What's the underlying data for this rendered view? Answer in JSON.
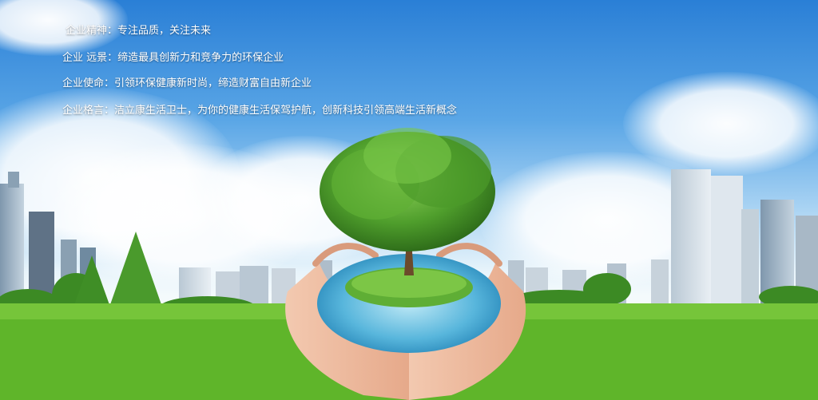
{
  "mission": {
    "spirit": "企业精神：专注品质，关注未来",
    "vision": "企业 远景：缔造最具创新力和竞争力的环保企业",
    "mission": "企业使命：引领环保健康新时尚，缔造财富自由新企业",
    "motto": "企业格言：洁立康生活卫士，为你的健康生活保驾护航，创新科技引领高端生活新概念"
  },
  "colors": {
    "sky": "#2a7fd6",
    "grass": "#5fb52a",
    "text": "#ffffff",
    "tree": "#3f8f2a"
  }
}
